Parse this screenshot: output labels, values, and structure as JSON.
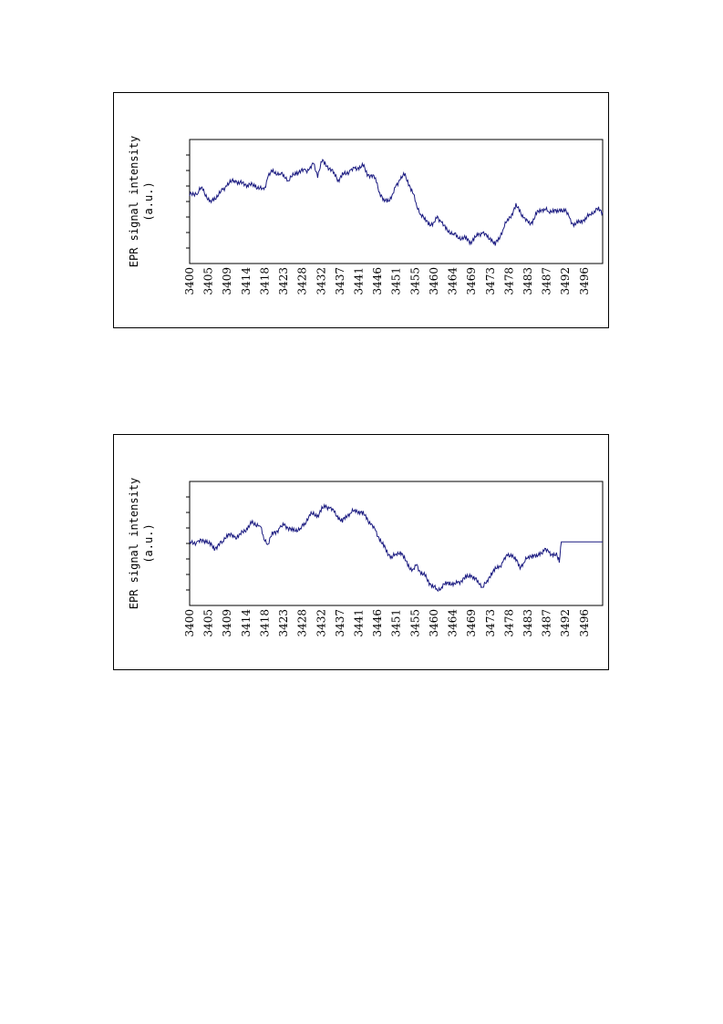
{
  "chart_data": [
    {
      "type": "line",
      "ylabel": "EPR signal intensity",
      "ylabel_unit": "(a.u.)",
      "x_tick_labels": [
        "3400",
        "3405",
        "3409",
        "3414",
        "3418",
        "3423",
        "3428",
        "3432",
        "3437",
        "3441",
        "3446",
        "3451",
        "3455",
        "3460",
        "3464",
        "3469",
        "3473",
        "3478",
        "3483",
        "3487",
        "3492",
        "3496"
      ],
      "xlim": [
        3400,
        3500
      ],
      "ylim": [
        0,
        8
      ],
      "y_ticks": [
        1,
        2,
        3,
        4,
        5,
        6,
        7
      ],
      "line_color": "#1a1a80",
      "series": [
        {
          "x": [
            3400,
            3402,
            3403,
            3405,
            3406,
            3408,
            3409,
            3411,
            3412,
            3414,
            3416,
            3418,
            3419,
            3420,
            3422,
            3423,
            3424,
            3426,
            3428,
            3429,
            3430,
            3431,
            3432,
            3433,
            3435,
            3436,
            3437,
            3439,
            3440,
            3441,
            3442,
            3443,
            3445,
            3446,
            3447,
            3448,
            3449,
            3450,
            3451,
            3452,
            3453,
            3454,
            3455,
            3456,
            3457,
            3458,
            3459,
            3460,
            3461,
            3462,
            3464,
            3465,
            3467,
            3468,
            3469,
            3470,
            3471,
            3472,
            3473,
            3474,
            3475,
            3476,
            3477,
            3478,
            3479,
            3480,
            3481,
            3482,
            3483,
            3484,
            3485,
            3486,
            3487,
            3488,
            3489,
            3490,
            3491,
            3492,
            3493,
            3494,
            3495,
            3496,
            3497,
            3498,
            3499,
            3500
          ],
          "y": [
            4.4,
            4.6,
            4.9,
            3.9,
            4.2,
            4.7,
            5.1,
            5.4,
            5.2,
            5.1,
            5.0,
            4.7,
            5.7,
            5.9,
            5.8,
            5.6,
            5.4,
            5.9,
            6.0,
            6.1,
            6.4,
            5.7,
            6.6,
            6.4,
            5.8,
            5.4,
            5.7,
            6.0,
            6.1,
            6.2,
            6.3,
            5.8,
            5.5,
            4.6,
            4.0,
            4.1,
            4.3,
            5.0,
            5.5,
            5.7,
            5.2,
            4.6,
            3.7,
            3.2,
            2.8,
            2.6,
            2.5,
            3.0,
            2.7,
            2.2,
            1.9,
            1.7,
            1.6,
            1.4,
            1.6,
            1.9,
            2.0,
            1.7,
            1.6,
            1.2,
            1.7,
            2.3,
            2.8,
            3.2,
            3.7,
            3.4,
            2.9,
            2.6,
            2.7,
            3.2,
            3.5,
            3.5,
            3.3,
            3.5,
            3.3,
            3.5,
            3.4,
            2.9,
            2.5,
            2.6,
            2.8,
            2.9,
            3.2,
            3.4,
            3.5,
            3.3
          ]
        }
      ]
    },
    {
      "type": "line",
      "ylabel": "EPR signal intensity",
      "ylabel_unit": "(a.u.)",
      "x_tick_labels": [
        "3400",
        "3405",
        "3409",
        "3414",
        "3418",
        "3423",
        "3428",
        "3432",
        "3437",
        "3441",
        "3446",
        "3451",
        "3455",
        "3460",
        "3464",
        "3469",
        "3473",
        "3478",
        "3483",
        "3487",
        "3492",
        "3496"
      ],
      "xlim": [
        3400,
        3500
      ],
      "ylim": [
        0,
        8
      ],
      "y_ticks": [
        1,
        2,
        3,
        4,
        5,
        6,
        7
      ],
      "line_color": "#1a1a80",
      "series": [
        {
          "x": [
            3400,
            3402,
            3404,
            3405,
            3406,
            3408,
            3409,
            3411,
            3412,
            3414,
            3415,
            3417,
            3418,
            3419,
            3420,
            3422,
            3423,
            3425,
            3427,
            3428,
            3429,
            3431,
            3432,
            3433,
            3434,
            3435,
            3436,
            3437,
            3438,
            3439,
            3440,
            3441,
            3442,
            3443,
            3444,
            3445,
            3446,
            3447,
            3448,
            3449,
            3450,
            3451,
            3452,
            3453,
            3454,
            3455,
            3456,
            3457,
            3458,
            3459,
            3460,
            3461,
            3462,
            3463,
            3464,
            3465,
            3467,
            3468,
            3469,
            3470,
            3471,
            3472,
            3473,
            3474,
            3475,
            3476,
            3477,
            3478,
            3479,
            3480,
            3481,
            3482,
            3483,
            3484,
            3485,
            3486,
            3487,
            3488,
            3489,
            3489.5,
            3490,
            3500
          ],
          "y": [
            4.0,
            4.1,
            4.2,
            3.9,
            3.7,
            4.1,
            4.6,
            4.4,
            4.5,
            5.0,
            5.3,
            5.2,
            4.3,
            4.0,
            4.6,
            5.0,
            5.2,
            4.8,
            5.0,
            5.3,
            5.9,
            5.8,
            6.2,
            6.4,
            6.3,
            6.0,
            5.7,
            5.4,
            5.8,
            6.0,
            6.1,
            6.1,
            5.9,
            5.6,
            5.2,
            4.8,
            4.3,
            3.8,
            3.4,
            3.1,
            3.3,
            3.5,
            3.0,
            2.6,
            2.2,
            2.6,
            2.1,
            1.9,
            1.5,
            1.2,
            1.0,
            1.2,
            1.4,
            1.5,
            1.3,
            1.5,
            1.8,
            2.0,
            1.7,
            1.5,
            1.2,
            1.5,
            2.1,
            2.3,
            2.5,
            2.9,
            3.2,
            3.3,
            2.9,
            2.5,
            2.8,
            3.1,
            3.3,
            3.1,
            3.4,
            3.6,
            3.4,
            3.3,
            3.2,
            2.9,
            4.1,
            4.1
          ]
        }
      ]
    }
  ]
}
